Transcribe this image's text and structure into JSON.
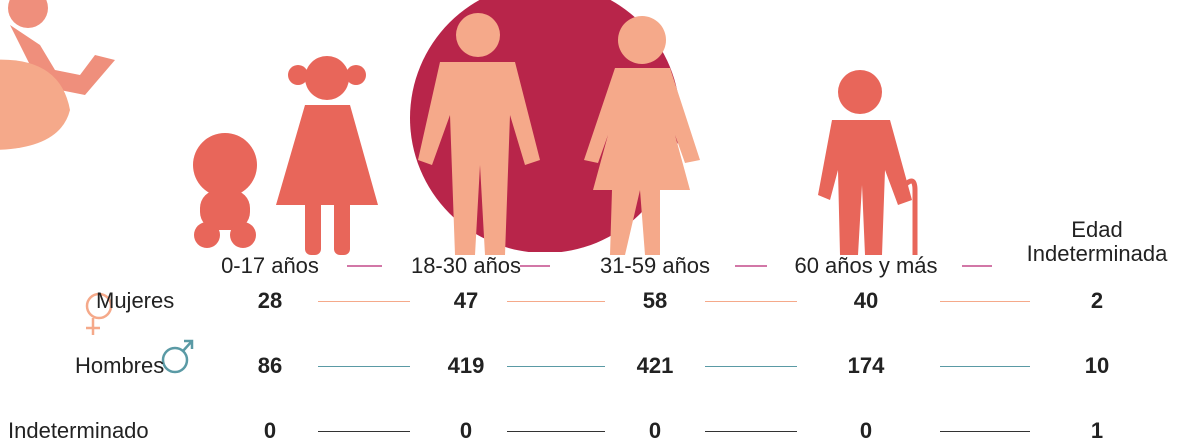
{
  "table": {
    "columns": [
      "0-17 años",
      "18-30 años",
      "31-59 años",
      "60 años y más",
      "Edad Indeterminada"
    ],
    "rows": [
      {
        "label": "Mujeres",
        "values": [
          28,
          47,
          58,
          40,
          2
        ]
      },
      {
        "label": "Hombres",
        "values": [
          86,
          419,
          421,
          174,
          10
        ]
      },
      {
        "label": "Indeterminado",
        "values": [
          0,
          0,
          0,
          0,
          1
        ]
      }
    ]
  }
}
